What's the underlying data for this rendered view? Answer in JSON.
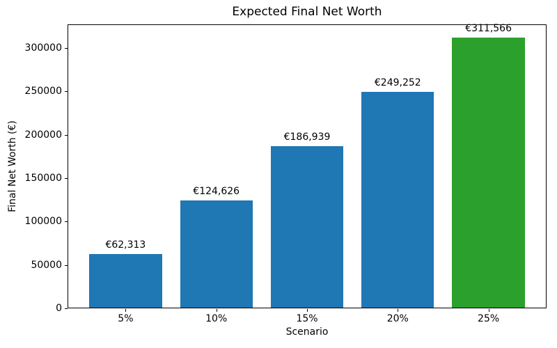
{
  "chart_data": {
    "type": "bar",
    "title": "Expected Final Net Worth",
    "xlabel": "Scenario",
    "ylabel": "Final Net Worth (€)",
    "categories": [
      "5%",
      "10%",
      "15%",
      "20%",
      "25%"
    ],
    "values": [
      62313,
      124626,
      186939,
      249252,
      311566
    ],
    "bar_labels": [
      "€62,313",
      "€124,626",
      "€186,939",
      "€249,252",
      "€311,566"
    ],
    "bar_colors": [
      "#1f77b4",
      "#1f77b4",
      "#1f77b4",
      "#1f77b4",
      "#2ca02c"
    ],
    "y_ticks": [
      0,
      50000,
      100000,
      150000,
      200000,
      250000,
      300000
    ],
    "ylim": [
      0,
      327144
    ],
    "grid": false,
    "legend_position": "none",
    "colors": {
      "bar_blue": "#1f77b4",
      "bar_green": "#2ca02c",
      "axis": "#000000",
      "background": "#ffffff"
    }
  }
}
